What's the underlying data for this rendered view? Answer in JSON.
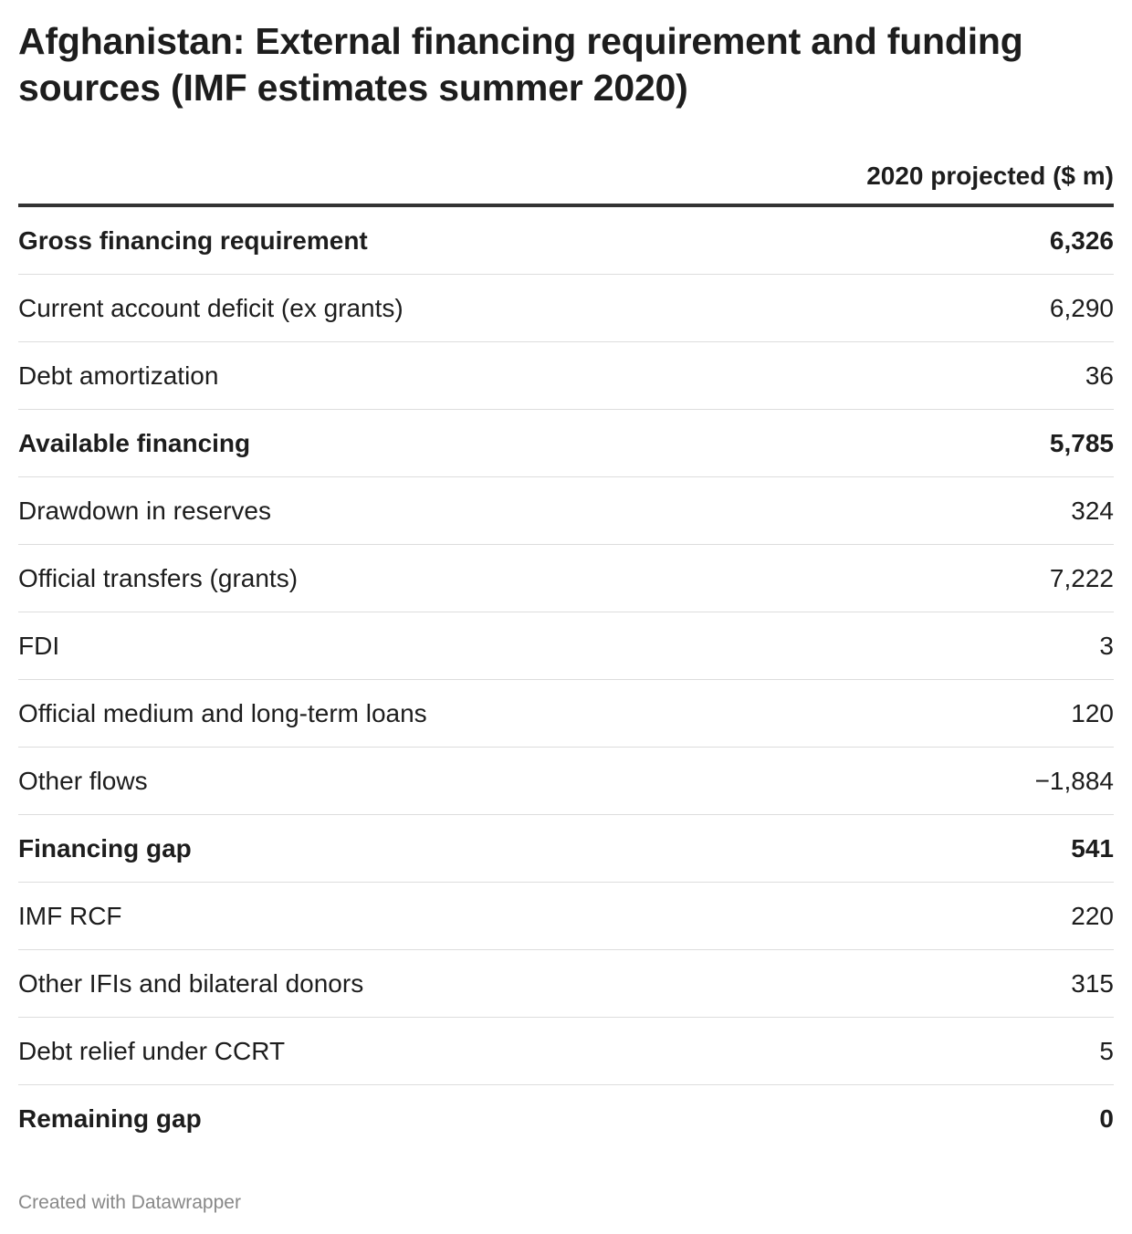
{
  "title": "Afghanistan: External financing requirement and funding sources (IMF estimates summer 2020)",
  "footer": "Created with Datawrapper",
  "chart_data": {
    "type": "table",
    "title": "Afghanistan: External financing requirement and funding sources (IMF estimates summer 2020)",
    "columns": [
      "",
      "2020 projected ($ m)"
    ],
    "rows": [
      {
        "label": "Gross financing requirement",
        "value": "6,326",
        "bold": true
      },
      {
        "label": "Current account deficit (ex grants)",
        "value": "6,290",
        "bold": false
      },
      {
        "label": "Debt amortization",
        "value": "36",
        "bold": false
      },
      {
        "label": "Available financing",
        "value": "5,785",
        "bold": true
      },
      {
        "label": "Drawdown in reserves",
        "value": "324",
        "bold": false
      },
      {
        "label": "Official transfers (grants)",
        "value": "7,222",
        "bold": false
      },
      {
        "label": "FDI",
        "value": "3",
        "bold": false
      },
      {
        "label": "Official medium and long-term loans",
        "value": "120",
        "bold": false
      },
      {
        "label": "Other flows",
        "value": "−1,884",
        "bold": false
      },
      {
        "label": "Financing gap",
        "value": "541",
        "bold": true
      },
      {
        "label": "IMF RCF",
        "value": "220",
        "bold": false
      },
      {
        "label": "Other IFIs and bilateral donors",
        "value": "315",
        "bold": false
      },
      {
        "label": "Debt relief under CCRT",
        "value": "5",
        "bold": false
      },
      {
        "label": "Remaining gap",
        "value": "0",
        "bold": true
      }
    ]
  }
}
